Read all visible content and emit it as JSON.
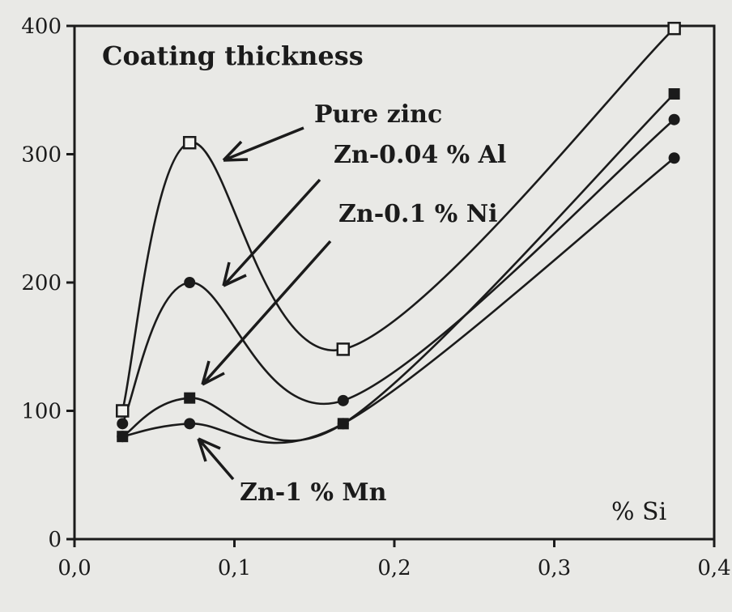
{
  "chart_data": {
    "type": "line",
    "title": "Coating thickness",
    "xlabel": "% Si",
    "ylabel": "",
    "xlim": [
      0,
      0.4
    ],
    "ylim": [
      0,
      400
    ],
    "x_ticks": [
      {
        "value": 0,
        "label": "0,0"
      },
      {
        "value": 0.1,
        "label": "0,1"
      },
      {
        "value": 0.2,
        "label": "0,2"
      },
      {
        "value": 0.3,
        "label": "0,3"
      },
      {
        "value": 0.4,
        "label": "0,4"
      }
    ],
    "y_ticks": [
      {
        "value": 0,
        "label": "0"
      },
      {
        "value": 100,
        "label": "100"
      },
      {
        "value": 200,
        "label": "200"
      },
      {
        "value": 300,
        "label": "300"
      },
      {
        "value": 400,
        "label": "400"
      }
    ],
    "grid": false,
    "series": [
      {
        "name": "Pure zinc",
        "marker": "open-square",
        "x": [
          0.03,
          0.072,
          0.168,
          0.375
        ],
        "y": [
          100,
          309,
          148,
          398
        ]
      },
      {
        "name": "Zn-0.04 % Al",
        "marker": "filled-circle",
        "x": [
          0.03,
          0.072,
          0.168,
          0.375
        ],
        "y": [
          90,
          200,
          108,
          327
        ]
      },
      {
        "name": "Zn-0.1 % Ni",
        "marker": "filled-square",
        "x": [
          0.03,
          0.072,
          0.168,
          0.375
        ],
        "y": [
          80,
          110,
          90,
          347
        ]
      },
      {
        "name": "Zn-1 % Mn",
        "marker": "filled-circle",
        "x": [
          0.03,
          0.072,
          0.168,
          0.375
        ],
        "y": [
          80,
          90,
          90,
          297
        ]
      }
    ],
    "annotations": [
      "Pure zinc",
      "Zn-0.04 % Al",
      "Zn-0.1 % Ni",
      "Zn-1 % Mn"
    ]
  }
}
